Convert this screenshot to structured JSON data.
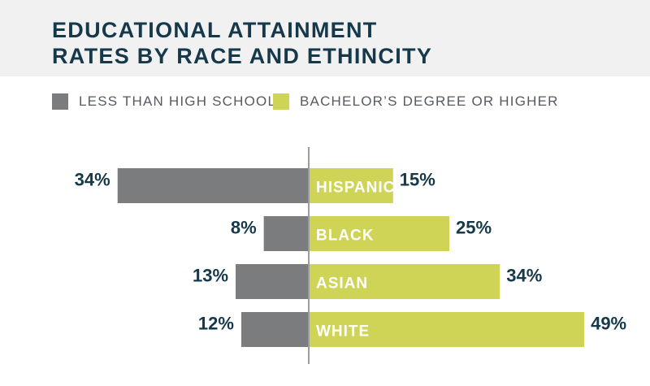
{
  "title": {
    "line1": "EDUCATIONAL ATTAINMENT",
    "line2": "RATES BY RACE AND ETHINCITY"
  },
  "legend": [
    {
      "label": "LESS THAN HIGH SCHOOL",
      "color": "#7b7c7e"
    },
    {
      "label": "BACHELOR’S DEGREE OR HIGHER",
      "color": "#cfd457"
    }
  ],
  "chart_data": {
    "type": "bar",
    "orientation": "horizontal-diverging",
    "categories": [
      "HISPANIC",
      "BLACK",
      "ASIAN",
      "WHITE"
    ],
    "series": [
      {
        "name": "LESS THAN HIGH SCHOOL",
        "values": [
          34,
          8,
          13,
          12
        ],
        "labels": [
          "34%",
          "8%",
          "13%",
          "12%"
        ],
        "color": "#7b7c7e"
      },
      {
        "name": "BACHELOR’S DEGREE OR HIGHER",
        "values": [
          15,
          25,
          34,
          49
        ],
        "labels": [
          "15%",
          "25%",
          "34%",
          "49%"
        ],
        "color": "#cfd457"
      }
    ],
    "title": "EDUCATIONAL ATTAINMENT RATES BY RACE AND ETHINCITY",
    "legend": "top-left",
    "grid": false
  }
}
